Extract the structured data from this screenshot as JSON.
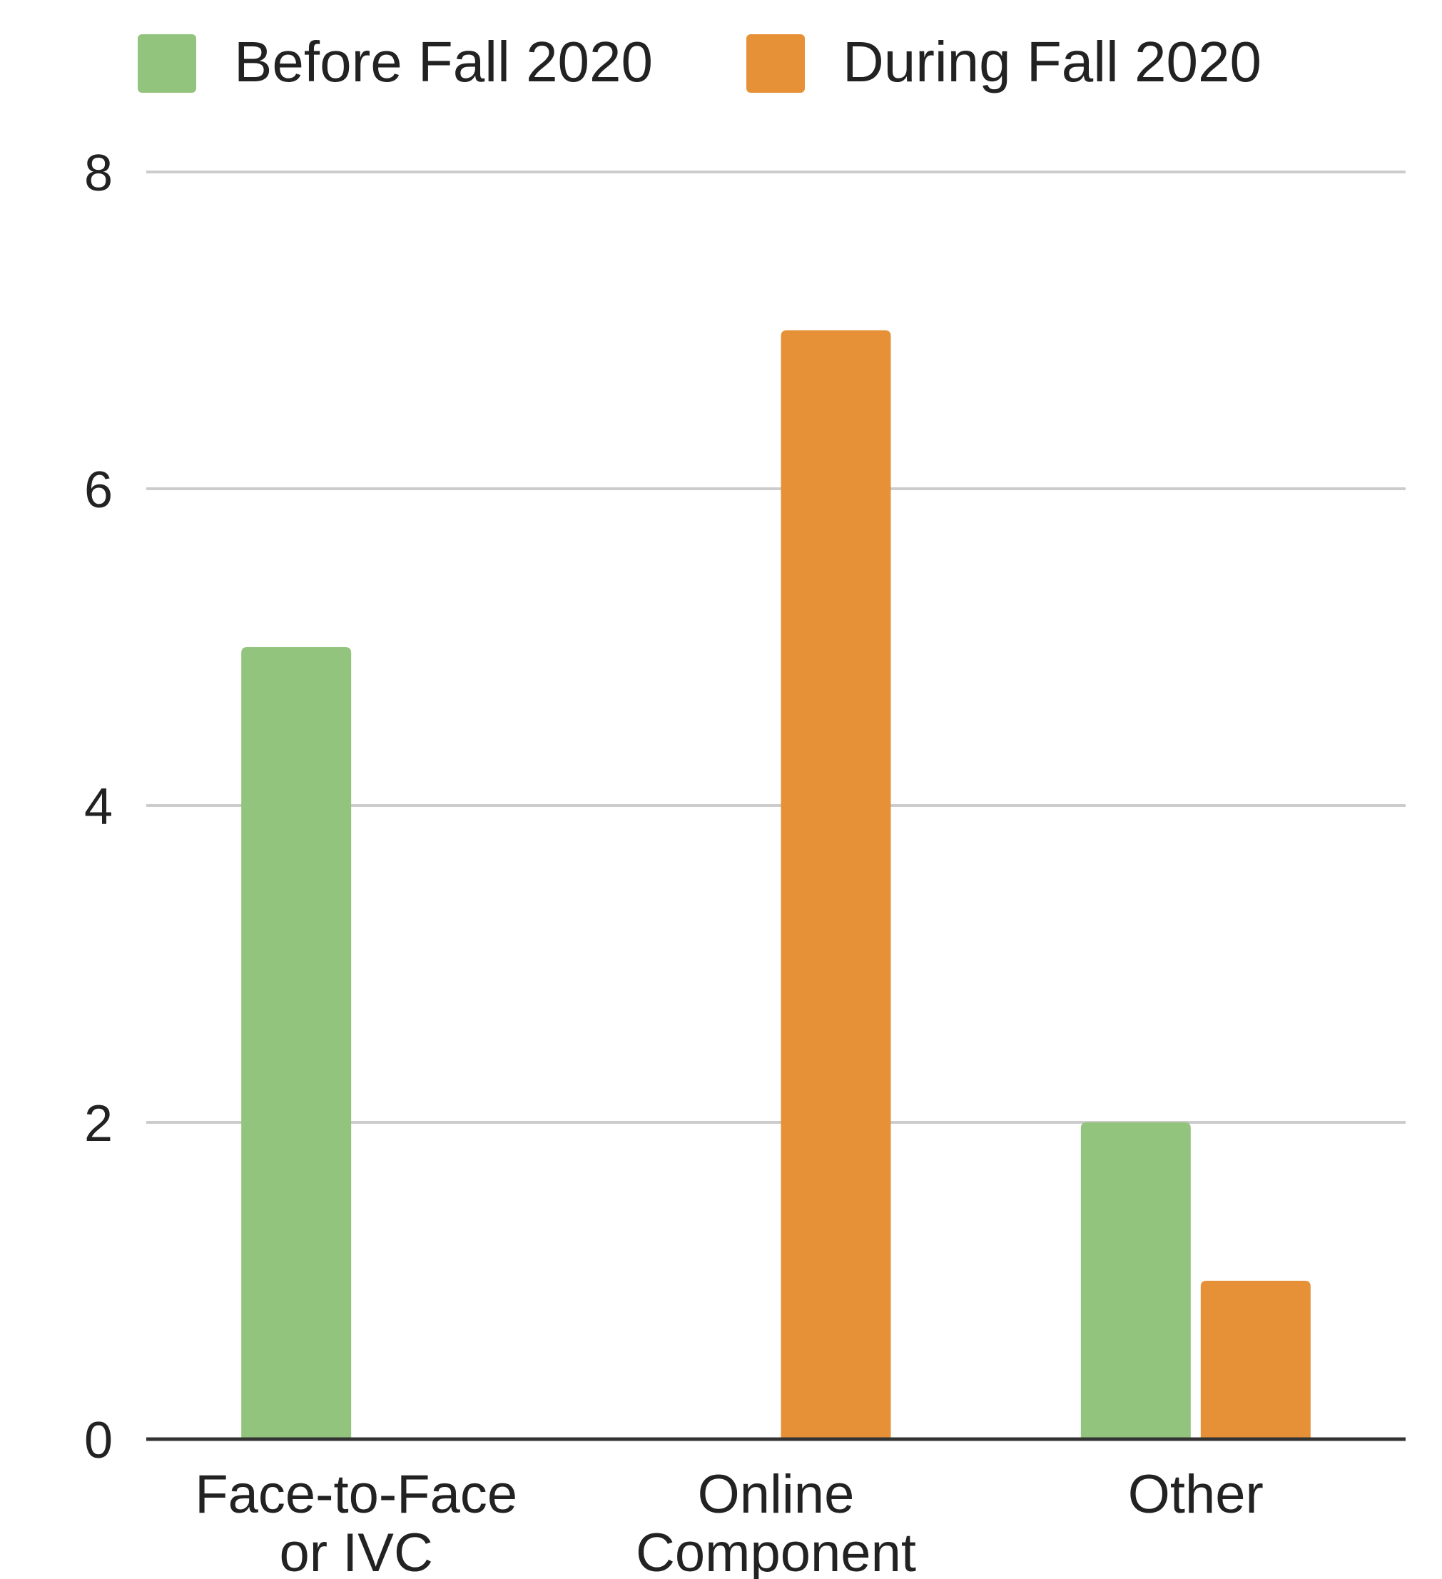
{
  "chart_data": {
    "type": "bar",
    "categories": [
      [
        "Face-to-Face",
        "or IVC"
      ],
      [
        "Online",
        "Component"
      ],
      [
        "Other"
      ]
    ],
    "series": [
      {
        "name": "Before Fall 2020",
        "color": "#93c47d",
        "values": [
          5,
          0,
          2
        ]
      },
      {
        "name": "During Fall 2020",
        "color": "#e69138",
        "values": [
          0,
          7,
          1
        ]
      }
    ],
    "ylim": [
      0,
      8
    ],
    "yticks": [
      "0",
      "2",
      "4",
      "6",
      "8"
    ],
    "grid": true,
    "legend_position": "top"
  }
}
